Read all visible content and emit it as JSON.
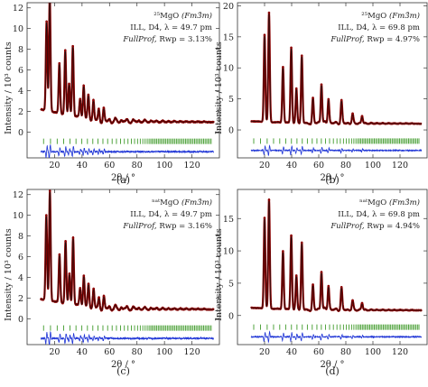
{
  "figure": {
    "panels": [
      {
        "letter": "(a)"
      },
      {
        "letter": "(b)"
      },
      {
        "letter": "(c)"
      },
      {
        "letter": "(d)"
      }
    ]
  },
  "colors": {
    "observed": "#8b0000",
    "calculated": "#111111",
    "bragg_ticks": "#3f9a2a",
    "difference": "#1f35d6"
  },
  "chart_data": [
    {
      "type": "line",
      "panel": "(a)",
      "sample": "²⁵MgO",
      "space_group": "(Fm3̄m)",
      "instrument": "ILL, D4, λ = 49.7 pm",
      "fit_label": "FullProf,",
      "fit_metric": "Rwp = 3.13%",
      "xlabel": "2θ / °",
      "ylabel": "Intensity / 10³ counts",
      "xlim": [
        0,
        140
      ],
      "ylim": [
        -2.5,
        12.5
      ],
      "xticks": [
        20,
        40,
        60,
        80,
        100,
        120
      ],
      "yticks": [
        0,
        2,
        4,
        6,
        8,
        10,
        12
      ],
      "background": {
        "start": 2.2,
        "end": 0.95
      },
      "peaks": [
        [
          14.2,
          8.6
        ],
        [
          16.5,
          11.0
        ],
        [
          23.5,
          4.8
        ],
        [
          27.8,
          6.2
        ],
        [
          30.6,
          3.0
        ],
        [
          33.3,
          6.8
        ],
        [
          38.6,
          1.8
        ],
        [
          41.2,
          3.2
        ],
        [
          44.6,
          2.3
        ],
        [
          48.3,
          2.0
        ],
        [
          52.2,
          1.2
        ],
        [
          55.8,
          1.4
        ]
      ],
      "offset_ticks": -0.9,
      "offset_diff": -1.9
    },
    {
      "type": "line",
      "panel": "(b)",
      "sample": "²⁵MgO",
      "space_group": "(Fm3̄m)",
      "instrument": "ILL, D4, λ = 69.8 pm",
      "fit_label": "FullProf,",
      "fit_metric": "Rwp = 4.97%",
      "xlabel": "2θ / °",
      "ylabel": "Intensity / 10³ counts",
      "xlim": [
        0,
        140
      ],
      "ylim": [
        -4.5,
        20.5
      ],
      "xticks": [
        20,
        40,
        60,
        80,
        100,
        120
      ],
      "yticks": [
        0,
        5,
        10,
        15,
        20
      ],
      "background": {
        "start": 1.4,
        "end": 1.0
      },
      "peaks": [
        [
          20.0,
          14.0
        ],
        [
          23.3,
          17.6
        ],
        [
          33.6,
          9.0
        ],
        [
          39.7,
          12.2
        ],
        [
          43.5,
          5.5
        ],
        [
          47.5,
          11.0
        ],
        [
          55.7,
          4.2
        ],
        [
          62.0,
          6.4
        ],
        [
          67.2,
          4.0
        ],
        [
          76.8,
          3.6
        ],
        [
          85.0,
          1.5
        ],
        [
          92.0,
          1.2
        ]
      ],
      "offset_ticks": -1.8,
      "offset_diff": -3.3
    },
    {
      "type": "line",
      "panel": "(c)",
      "sample": "ⁿᵃᵗMgO",
      "space_group": "(Fm3̄m)",
      "instrument": "ILL, D4, λ = 49.7 pm",
      "fit_label": "FullProf,",
      "fit_metric": "Rwp = 3.16%",
      "xlabel": "2θ / °",
      "ylabel": "Intensity / 10³ counts",
      "xlim": [
        0,
        140
      ],
      "ylim": [
        -2.5,
        12.5
      ],
      "xticks": [
        20,
        40,
        60,
        80,
        100,
        120
      ],
      "yticks": [
        0,
        2,
        4,
        6,
        8,
        10,
        12
      ],
      "background": {
        "start": 1.9,
        "end": 0.9
      },
      "peaks": [
        [
          14.0,
          8.2
        ],
        [
          16.6,
          10.6
        ],
        [
          23.6,
          4.6
        ],
        [
          28.0,
          6.0
        ],
        [
          30.8,
          2.9
        ],
        [
          33.5,
          6.5
        ],
        [
          38.6,
          1.7
        ],
        [
          41.3,
          3.0
        ],
        [
          44.7,
          2.2
        ],
        [
          48.4,
          1.9
        ],
        [
          52.3,
          1.1
        ],
        [
          55.9,
          1.3
        ]
      ],
      "offset_ticks": -0.9,
      "offset_diff": -1.9
    },
    {
      "type": "line",
      "panel": "(d)",
      "sample": "ⁿᵃᵗMgO",
      "space_group": "(Fm3̄m)",
      "instrument": "ILL, D4, λ = 69.8 pm",
      "fit_label": "FullProf,",
      "fit_metric": "Rwp = 4.94%",
      "xlabel": "2θ / °",
      "ylabel": "Intensity / 10³ counts",
      "xlim": [
        0,
        140
      ],
      "ylim": [
        -4.5,
        19.5
      ],
      "xticks": [
        20,
        40,
        60,
        80,
        100,
        120
      ],
      "yticks": [
        0,
        5,
        10,
        15
      ],
      "background": {
        "start": 1.2,
        "end": 0.8
      },
      "peaks": [
        [
          20.0,
          14.0
        ],
        [
          23.3,
          16.8
        ],
        [
          33.6,
          9.0
        ],
        [
          39.7,
          11.5
        ],
        [
          43.5,
          5.2
        ],
        [
          47.5,
          10.5
        ],
        [
          55.7,
          4.0
        ],
        [
          62.0,
          6.0
        ],
        [
          67.2,
          3.8
        ],
        [
          76.8,
          3.4
        ],
        [
          85.0,
          1.4
        ],
        [
          92.0,
          1.1
        ]
      ],
      "offset_ticks": -1.8,
      "offset_diff": -3.3
    }
  ]
}
